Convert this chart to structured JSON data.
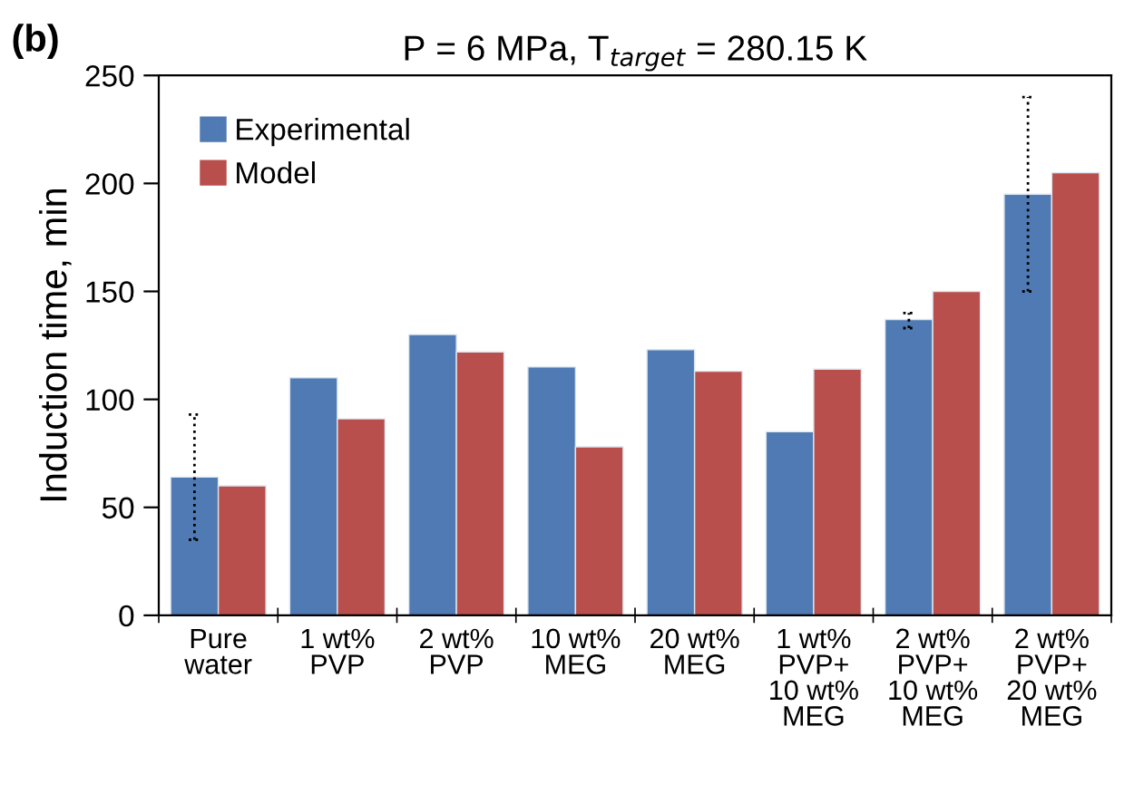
{
  "chart_data": {
    "type": "bar",
    "title": "P = 6 MPa, T$_{target}$ = 280.15 K",
    "ylabel": "Induction time, min",
    "annotations": [
      "(b)"
    ],
    "categories": [
      "Pure\nwater",
      "1 wt%\nPVP",
      "2 wt%\nPVP",
      "10 wt%\nMEG",
      "20 wt%\nMEG",
      "1 wt%\nPVP+\n10 wt%\nMEG",
      "2 wt%\nPVP+\n10 wt%\nMEG",
      "2 wt%\nPVP+\n20 wt%\nMEG"
    ],
    "series": [
      {
        "name": "Experimental",
        "color": "#4f7ab3",
        "values": [
          64,
          110,
          130,
          115,
          123,
          85,
          137,
          195
        ],
        "errors": [
          [
            35,
            93
          ],
          null,
          null,
          null,
          null,
          null,
          [
            133,
            140
          ],
          [
            150,
            240
          ]
        ]
      },
      {
        "name": "Model",
        "color": "#b94f4c",
        "values": [
          60,
          91,
          122,
          78,
          113,
          114,
          150,
          205
        ]
      }
    ],
    "ylim": [
      0,
      250
    ],
    "yticks": [
      0,
      50,
      100,
      150,
      200,
      250
    ],
    "grid": false,
    "legend": "top left"
  }
}
